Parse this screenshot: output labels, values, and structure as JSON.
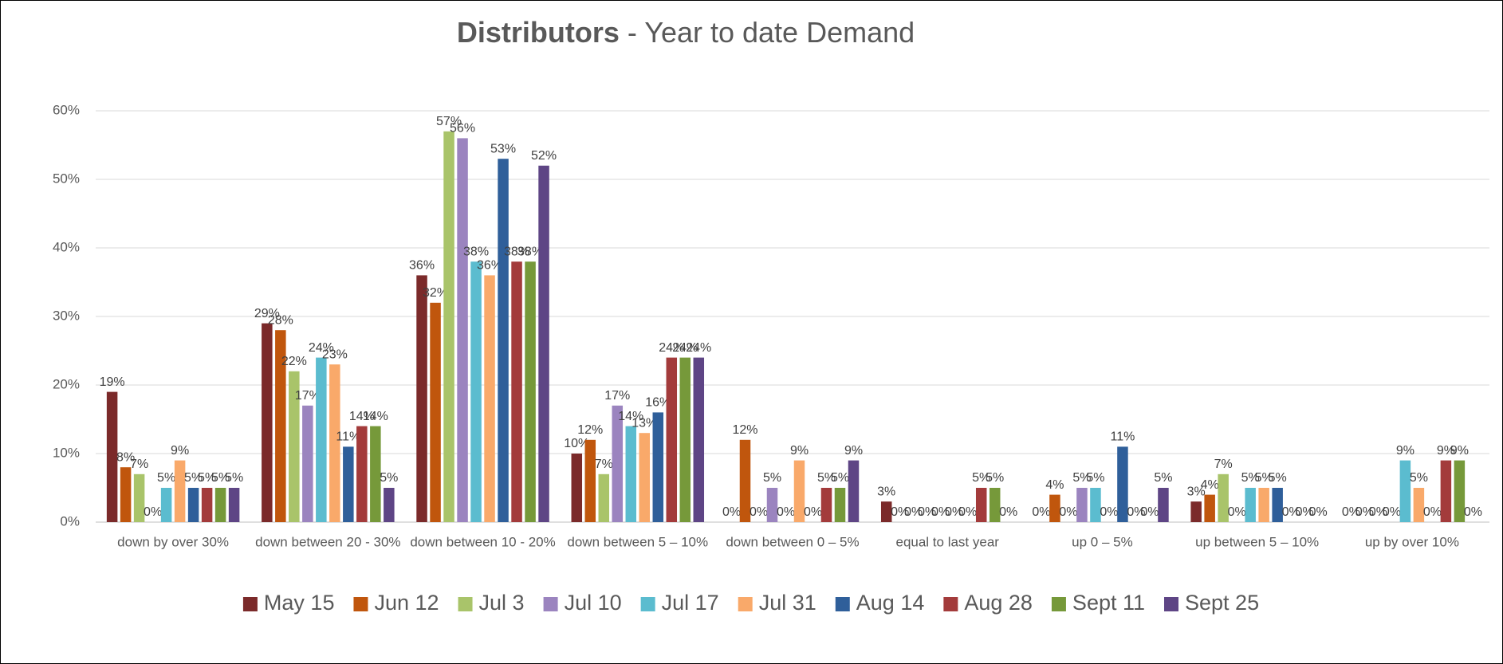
{
  "chart_data": {
    "type": "bar",
    "title": [
      "Distributors",
      "- Year to date Demand"
    ],
    "categories": [
      "down by over 30%",
      "down between 20 - 30%",
      "down between 10 - 20%",
      "down between 5 – 10%",
      "down between 0 – 5%",
      "equal to last year",
      "up 0 – 5%",
      "up between 5 – 10%",
      "up by over 10%"
    ],
    "series": [
      {
        "name": "May 15",
        "color": "#7b2a2a",
        "values": [
          19,
          29,
          36,
          10,
          0,
          3,
          0,
          3,
          0
        ],
        "value_labels": [
          "19%",
          "29%",
          "36%",
          "10%",
          "0%",
          "3%",
          "0%",
          "3%",
          "0%"
        ]
      },
      {
        "name": "Jun 12",
        "color": "#c0560d",
        "values": [
          8,
          28,
          32,
          12,
          12,
          0,
          4,
          4,
          0
        ],
        "value_labels": [
          "8%",
          "28%",
          "32%",
          "12%",
          "12%",
          "0%",
          "4%",
          "4%",
          "0%"
        ]
      },
      {
        "name": "Jul 3",
        "color": "#a9c46a",
        "values": [
          7,
          22,
          57,
          7,
          0,
          0,
          0,
          7,
          0
        ],
        "value_labels": [
          "7%",
          "22%",
          "57%",
          "7%",
          "0%",
          "0%",
          "0%",
          "7%",
          "0%"
        ]
      },
      {
        "name": "Jul 10",
        "color": "#9b84bf",
        "values": [
          0,
          17,
          56,
          17,
          5,
          0,
          5,
          0,
          0
        ],
        "value_labels": [
          "0%",
          "17%",
          "56%",
          "17%",
          "5%",
          "0%",
          "5%",
          "0%",
          "0%"
        ]
      },
      {
        "name": "Jul 17",
        "color": "#5bbccf",
        "values": [
          5,
          24,
          38,
          14,
          0,
          0,
          5,
          5,
          9
        ],
        "value_labels": [
          "5%",
          "24%",
          "38%",
          "14%",
          "0%",
          "0%",
          "5%",
          "5%",
          "9%"
        ]
      },
      {
        "name": "Jul 31",
        "color": "#f9a96a",
        "values": [
          9,
          23,
          36,
          13,
          9,
          0,
          0,
          5,
          5
        ],
        "value_labels": [
          "9%",
          "23%",
          "36%",
          "13%",
          "9%",
          "0%",
          "0%",
          "5%",
          "5%"
        ]
      },
      {
        "name": "Aug 14",
        "color": "#2f5f9a",
        "values": [
          5,
          11,
          53,
          16,
          0,
          0,
          11,
          5,
          0
        ],
        "value_labels": [
          "5%",
          "11%",
          "53%",
          "16%",
          "0%",
          "0%",
          "11%",
          "5%",
          "0%"
        ]
      },
      {
        "name": "Aug 28",
        "color": "#a33b3b",
        "values": [
          5,
          14,
          38,
          24,
          5,
          5,
          0,
          0,
          9
        ],
        "value_labels": [
          "5%",
          "14%",
          "38%",
          "24%",
          "5%",
          "5%",
          "0%",
          "0%",
          "9%"
        ]
      },
      {
        "name": "Sept 11",
        "color": "#76993a",
        "values": [
          5,
          14,
          38,
          24,
          5,
          5,
          0,
          0,
          9
        ],
        "value_labels": [
          "5%",
          "14%",
          "38%",
          "24%",
          "5%",
          "5%",
          "0%",
          "0%",
          "9%"
        ]
      },
      {
        "name": "Sept 25",
        "color": "#5e4585",
        "values": [
          5,
          5,
          52,
          24,
          9,
          0,
          5,
          0,
          0
        ],
        "value_labels": [
          "5%",
          "5%",
          "52%",
          "24%",
          "9%",
          "0%",
          "5%",
          "0%",
          "0%"
        ]
      }
    ],
    "ylim": [
      0,
      60
    ],
    "yticks": [
      {
        "value": 0,
        "label": "0%"
      },
      {
        "value": 10,
        "label": "10%"
      },
      {
        "value": 20,
        "label": "20%"
      },
      {
        "value": 30,
        "label": "30%"
      },
      {
        "value": 40,
        "label": "40%"
      },
      {
        "value": 50,
        "label": "50%"
      },
      {
        "value": 60,
        "label": "60%"
      }
    ],
    "grid": true,
    "legend": "bottom"
  }
}
